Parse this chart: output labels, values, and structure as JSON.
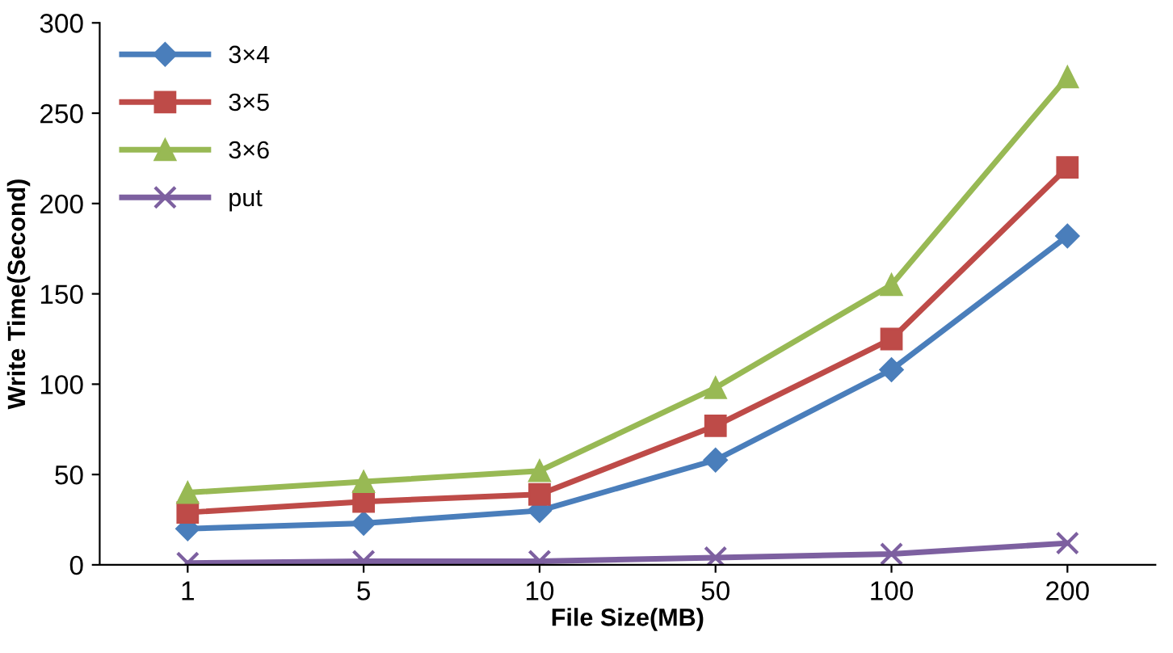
{
  "chart_data": {
    "type": "line",
    "xlabel": "File Size(MB)",
    "ylabel": "Write Time(Second)",
    "categories": [
      "1",
      "5",
      "10",
      "50",
      "100",
      "200"
    ],
    "series": [
      {
        "name": "3×4",
        "color": "#4a7ebb",
        "marker": "diamond",
        "values": [
          20,
          23,
          30,
          58,
          108,
          182
        ]
      },
      {
        "name": "3×5",
        "color": "#be4b48",
        "marker": "square",
        "values": [
          29,
          35,
          39,
          77,
          125,
          220
        ]
      },
      {
        "name": "3×6",
        "color": "#98b954",
        "marker": "triangle",
        "values": [
          40,
          46,
          52,
          98,
          155,
          270
        ]
      },
      {
        "name": "put",
        "color": "#7d60a0",
        "marker": "cross",
        "values": [
          1,
          2,
          2,
          4,
          6,
          12
        ]
      }
    ],
    "ylim": [
      0,
      300
    ],
    "yticks": [
      0,
      50,
      100,
      150,
      200,
      250,
      300
    ],
    "grid": false,
    "legend": "top left"
  }
}
